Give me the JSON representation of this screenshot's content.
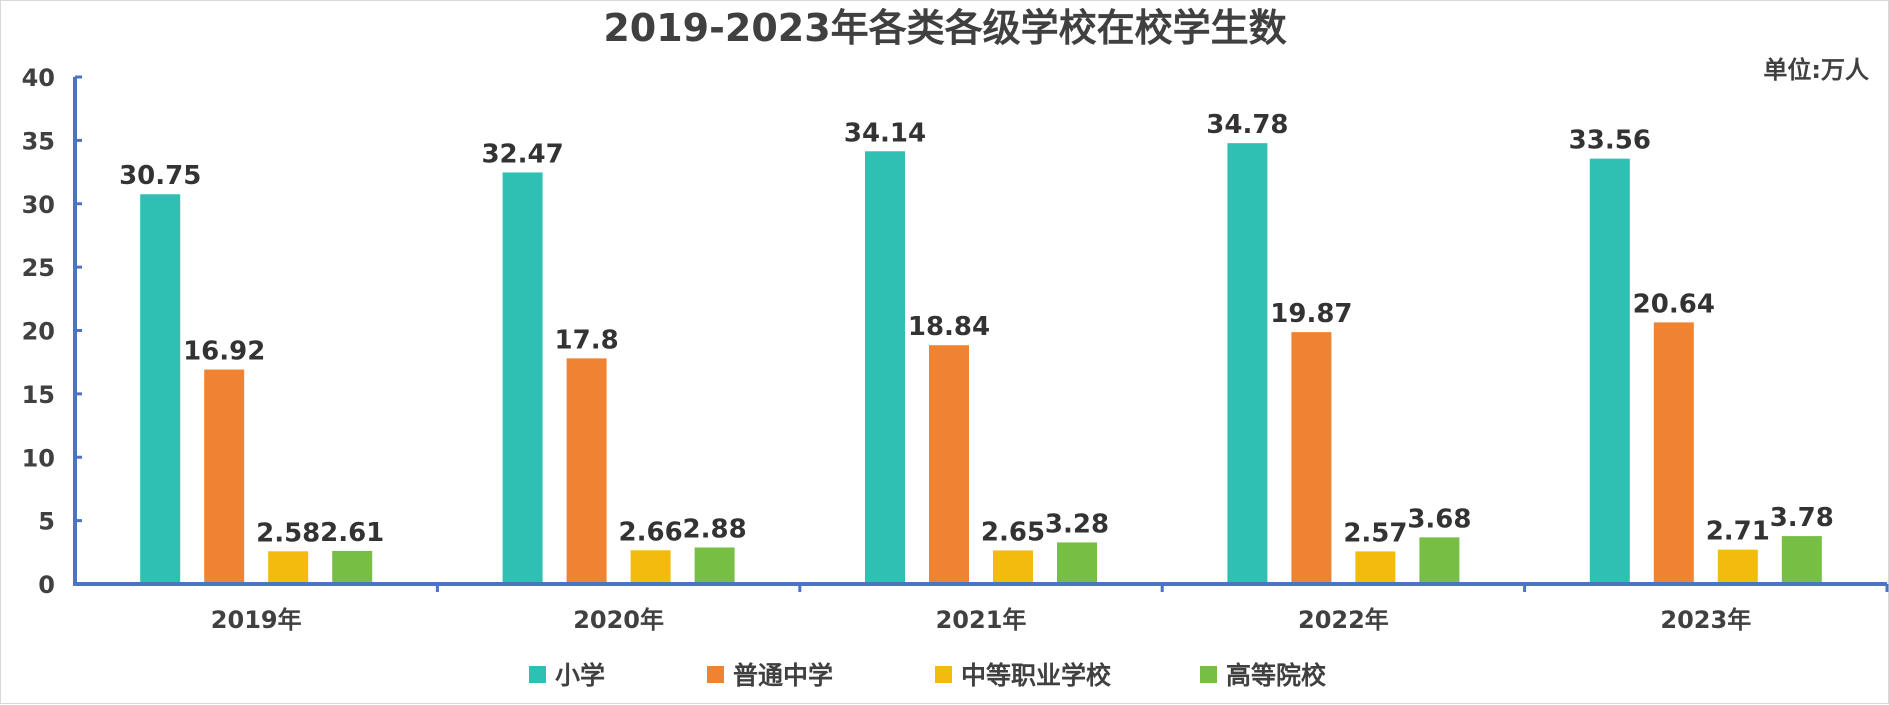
{
  "chart_data": {
    "type": "bar",
    "title": "2019-2023年各类各级学校在校学生数",
    "unit_label": "单位:万人",
    "categories": [
      "2019年",
      "2020年",
      "2021年",
      "2022年",
      "2023年"
    ],
    "yticks": [
      "0",
      "5",
      "10",
      "15",
      "20",
      "25",
      "30",
      "35",
      "40"
    ],
    "ylim": [
      0,
      40
    ],
    "grid": false,
    "legend_position": "bottom",
    "series": [
      {
        "name": "小学",
        "color": "#30c0b3",
        "values": [
          30.75,
          32.47,
          34.14,
          34.78,
          33.56
        ],
        "labels": [
          "30.75",
          "32.47",
          "34.14",
          "34.78",
          "33.56"
        ]
      },
      {
        "name": "普通中学",
        "color": "#f08332",
        "values": [
          16.92,
          17.8,
          18.84,
          19.87,
          20.64
        ],
        "labels": [
          "16.92",
          "17.8",
          "18.84",
          "19.87",
          "20.64"
        ]
      },
      {
        "name": "中等职业学校",
        "color": "#f2bb0e",
        "values": [
          2.58,
          2.66,
          2.65,
          2.57,
          2.71
        ],
        "labels": [
          "2.58",
          "2.66",
          "2.65",
          "2.57",
          "2.71"
        ]
      },
      {
        "name": "高等院校",
        "color": "#77bf44",
        "values": [
          2.61,
          2.88,
          3.28,
          3.68,
          3.78
        ],
        "labels": [
          "2.61",
          "2.88",
          "3.28",
          "3.68",
          "3.78"
        ]
      }
    ],
    "axis_color": "#4a74c4"
  }
}
